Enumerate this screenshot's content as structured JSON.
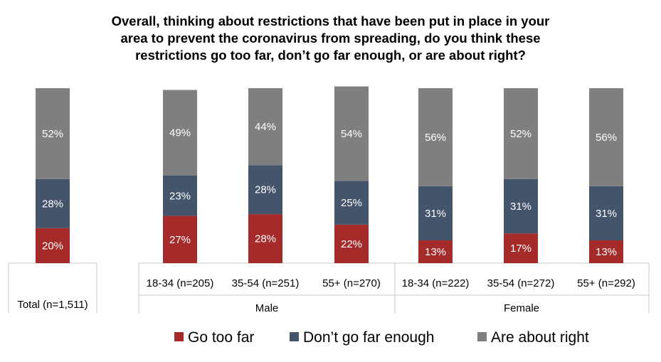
{
  "chart_data": {
    "type": "bar",
    "stacked": true,
    "title": "Overall, thinking about restrictions that have been put in place in your\narea to prevent the coronavirus from spreading, do you think these\nrestrictions go too far, don’t go far enough, or are about right?",
    "categories": [
      "Total (n=1,511)",
      "18-34 (n=205)",
      "35-54 (n=251)",
      "55+ (n=270)",
      "18-34 (n=222)",
      "35-54 (n=272)",
      "55+ (n=292)"
    ],
    "groups": [
      {
        "label": "Male",
        "categories": [
          "18-34 (n=205)",
          "35-54 (n=251)",
          "55+ (n=270)"
        ]
      },
      {
        "label": "Female",
        "categories": [
          "18-34 (n=222)",
          "35-54 (n=272)",
          "55+ (n=292)"
        ]
      }
    ],
    "series": [
      {
        "name": "Go too far",
        "color": "#a52a2a",
        "values": [
          20,
          27,
          28,
          22,
          13,
          17,
          13
        ],
        "labels": [
          "20%",
          "27%",
          "28%",
          "22%",
          "13%",
          "17%",
          "13%"
        ]
      },
      {
        "name": "Don’t go far enough",
        "color": "#44546a",
        "values": [
          28,
          23,
          28,
          25,
          31,
          31,
          31
        ],
        "labels": [
          "28%",
          "23%",
          "28%",
          "25%",
          "31%",
          "31%",
          "31%"
        ]
      },
      {
        "name": "Are about right",
        "color": "#7f7f7f",
        "values": [
          52,
          49,
          44,
          54,
          56,
          52,
          56
        ],
        "labels": [
          "52%",
          "49%",
          "44%",
          "54%",
          "56%",
          "52%",
          "56%"
        ]
      }
    ],
    "ylim": [
      0,
      100
    ],
    "grid": false,
    "legend": "bottom"
  }
}
